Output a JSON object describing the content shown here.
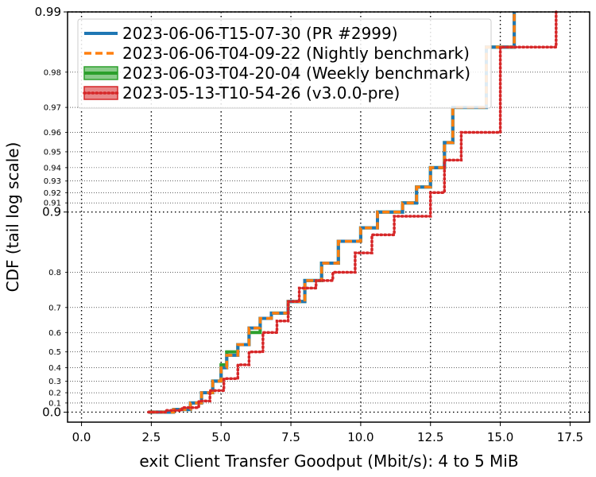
{
  "chart_data": {
    "type": "line",
    "title": "",
    "xlabel": "exit Client Transfer Goodput (Mbit/s): 4 to 5 MiB",
    "ylabel": "CDF (tail log scale)",
    "xlim": [
      -0.5,
      18.2
    ],
    "x_ticks": [
      0.0,
      2.5,
      5.0,
      7.5,
      10.0,
      12.5,
      15.0,
      17.5
    ],
    "x_tick_labels": [
      "0.0",
      "2.5",
      "5.0",
      "7.5",
      "10.0",
      "12.5",
      "15.0",
      "17.5"
    ],
    "y_scale": "tail-log (position = -log10(1 - CDF))",
    "ylim": [
      -0.05,
      2.0
    ],
    "y_ticks_major": [
      0.0,
      0.9,
      0.99
    ],
    "y_tick_labels_major": [
      "0.0",
      "0.9",
      "0.99"
    ],
    "y_ticks_minor": [
      0.1,
      0.2,
      0.3,
      0.4,
      0.5,
      0.6,
      0.7,
      0.8,
      0.91,
      0.92,
      0.93,
      0.94,
      0.95,
      0.96,
      0.97,
      0.98
    ],
    "y_tick_labels_minor": [
      "0.1",
      "0.2",
      "0.3",
      "0.4",
      "0.5",
      "0.6",
      "0.7",
      "0.8",
      "0.91",
      "0.92",
      "0.93",
      "0.94",
      "0.95",
      "0.96",
      "0.97",
      "0.98"
    ],
    "grid": true,
    "legend_position": "top-left",
    "series": [
      {
        "name": "2023-06-06-T15-07-30 (PR #2999)",
        "color": "#1f77b4",
        "line_style": "solid",
        "x": [
          2.4,
          3.3,
          3.9,
          4.3,
          4.7,
          5.0,
          5.2,
          5.6,
          6.0,
          6.4,
          6.8,
          7.4,
          8.0,
          8.6,
          9.2,
          10.0,
          10.6,
          11.5,
          12.0,
          12.5,
          13.0,
          13.3,
          14.5,
          15.5
        ],
        "y": [
          0.0,
          0.03,
          0.1,
          0.2,
          0.3,
          0.4,
          0.48,
          0.54,
          0.62,
          0.66,
          0.68,
          0.72,
          0.78,
          0.82,
          0.86,
          0.88,
          0.9,
          0.91,
          0.925,
          0.94,
          0.955,
          0.97,
          0.985,
          0.99
        ]
      },
      {
        "name": "2023-06-06-T04-09-22 (Nightly benchmark)",
        "color": "#ff7f0e",
        "line_style": "dashed",
        "x": [
          2.4,
          3.3,
          3.9,
          4.3,
          4.7,
          5.0,
          5.2,
          5.6,
          6.0,
          6.4,
          6.8,
          7.4,
          8.0,
          8.6,
          9.2,
          10.0,
          10.6,
          11.5,
          12.0,
          12.5,
          13.0,
          13.3,
          14.5,
          15.5
        ],
        "y": [
          0.0,
          0.03,
          0.1,
          0.2,
          0.3,
          0.4,
          0.48,
          0.54,
          0.62,
          0.66,
          0.68,
          0.72,
          0.78,
          0.82,
          0.86,
          0.88,
          0.9,
          0.91,
          0.925,
          0.94,
          0.955,
          0.97,
          0.985,
          0.99
        ]
      },
      {
        "name": "2023-06-03-T04-20-04 (Weekly benchmark)",
        "color": "#2ca02c",
        "line_style": "solid",
        "x": [
          2.4,
          3.3,
          3.9,
          4.3,
          4.7,
          5.0,
          5.2,
          5.6,
          6.0,
          6.4,
          6.8,
          7.4,
          8.0,
          8.6,
          9.2,
          10.0,
          10.6,
          11.5,
          12.0,
          12.5,
          13.0,
          13.3,
          14.5,
          15.5
        ],
        "y": [
          0.0,
          0.03,
          0.1,
          0.2,
          0.3,
          0.42,
          0.5,
          0.54,
          0.6,
          0.66,
          0.68,
          0.72,
          0.78,
          0.82,
          0.86,
          0.88,
          0.9,
          0.91,
          0.925,
          0.94,
          0.955,
          0.97,
          0.985,
          0.99
        ]
      },
      {
        "name": "2023-05-13-T10-54-26 (v3.0.0-pre)",
        "color": "#d62728",
        "line_style": "dotted",
        "x": [
          2.4,
          3.0,
          3.6,
          4.2,
          4.6,
          5.1,
          5.6,
          6.0,
          6.5,
          7.0,
          7.4,
          7.8,
          8.4,
          9.0,
          9.8,
          10.4,
          11.2,
          12.5,
          13.0,
          13.6,
          15.0,
          17.0
        ],
        "y": [
          0.0,
          0.02,
          0.05,
          0.12,
          0.22,
          0.32,
          0.42,
          0.5,
          0.6,
          0.65,
          0.72,
          0.76,
          0.78,
          0.8,
          0.84,
          0.87,
          0.895,
          0.92,
          0.945,
          0.96,
          0.985,
          0.99
        ]
      }
    ]
  }
}
